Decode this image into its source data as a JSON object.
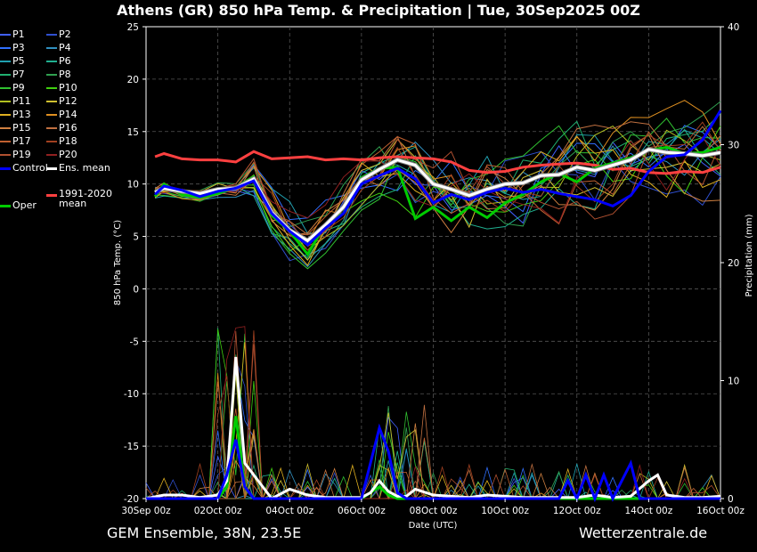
{
  "title": "Athens  (GR)  850 hPa Temp. & Precipitation | Tue, 30Sep2025 00Z",
  "footer": {
    "left": "GEM Ensemble, 38N, 23.5E",
    "right": "Wetterzentrale.de"
  },
  "colors": {
    "background": "#000000",
    "control": "#0000ff",
    "ens_mean": "#ffffff",
    "climate_mean": "#ff4040",
    "oper": "#00cc00"
  },
  "legend": [
    {
      "label": "P1",
      "color": "#4060ff"
    },
    {
      "label": "P2",
      "color": "#3050d0"
    },
    {
      "label": "P3",
      "color": "#3070ff"
    },
    {
      "label": "P4",
      "color": "#3090c0"
    },
    {
      "label": "P5",
      "color": "#20a0b0"
    },
    {
      "label": "P6",
      "color": "#20b090"
    },
    {
      "label": "P7",
      "color": "#20b070"
    },
    {
      "label": "P8",
      "color": "#30a050"
    },
    {
      "label": "P9",
      "color": "#30c030"
    },
    {
      "label": "P10",
      "color": "#40d010"
    },
    {
      "label": "P11",
      "color": "#b0c020"
    },
    {
      "label": "P12",
      "color": "#d0c030"
    },
    {
      "label": "P13",
      "color": "#e0b020"
    },
    {
      "label": "P14",
      "color": "#e09020"
    },
    {
      "label": "P15",
      "color": "#d08040"
    },
    {
      "label": "P16",
      "color": "#c07040"
    },
    {
      "label": "P17",
      "color": "#c06030"
    },
    {
      "label": "P18",
      "color": "#a04020"
    },
    {
      "label": "P19",
      "color": "#b05030"
    },
    {
      "label": "P20",
      "color": "#902020"
    },
    {
      "label": "Control",
      "color": "#0000ff"
    },
    {
      "label": "Ens. mean",
      "color": "#ffffff"
    },
    {
      "label": "1991-2020 mean",
      "color": "#ff4040"
    },
    {
      "label": "Oper",
      "color": "#00cc00"
    }
  ],
  "chart_data": {
    "type": "line",
    "xlabel": "Date (UTC)",
    "ylabel": "850 hPa Temp. (°C)",
    "y2label": "Precipitation (mm)",
    "xlim": [
      0,
      16
    ],
    "ylim": [
      -20,
      25
    ],
    "y2lim": [
      0,
      40
    ],
    "x_unit": "days since 30Sep2025 00z",
    "x_ticks": [
      {
        "x": 0,
        "label": "30Sep 00z"
      },
      {
        "x": 2,
        "label": "02Oct 00z"
      },
      {
        "x": 4,
        "label": "04Oct 00z"
      },
      {
        "x": 6,
        "label": "06Oct 00z"
      },
      {
        "x": 8,
        "label": "08Oct 00z"
      },
      {
        "x": 10,
        "label": "10Oct 00z"
      },
      {
        "x": 12,
        "label": "12Oct 00z"
      },
      {
        "x": 14,
        "label": "14Oct 00z"
      },
      {
        "x": 16,
        "label": "16Oct 00z"
      }
    ],
    "y_ticks": [
      25,
      20,
      15,
      10,
      5,
      0,
      -5,
      -10,
      -15,
      -20
    ],
    "y2_ticks": [
      40,
      30,
      20,
      10,
      0
    ],
    "grid": true,
    "temperature_series": [
      {
        "name": "Control",
        "color": "#0000ff",
        "width": 3,
        "x": [
          0.25,
          0.5,
          1,
          1.5,
          2,
          2.5,
          3,
          3.5,
          4,
          4.5,
          5,
          5.5,
          6,
          6.5,
          7,
          7.5,
          8,
          8.5,
          9,
          9.5,
          10,
          10.5,
          11,
          11.5,
          12,
          12.5,
          13,
          13.5,
          14,
          14.5,
          15,
          15.5,
          16
        ],
        "y": [
          9,
          9.8,
          9.4,
          8.8,
          9.3,
          9.6,
          10.3,
          7.2,
          5.5,
          4.2,
          5.8,
          7.2,
          10.0,
          10.8,
          11.5,
          10.5,
          8.2,
          9.0,
          8.5,
          9.2,
          9.6,
          9.2,
          9.5,
          9.1,
          8.8,
          8.5,
          7.9,
          8.9,
          11.2,
          12.6,
          12.8,
          14.2,
          17.0
        ]
      },
      {
        "name": "Ens. mean",
        "color": "#ffffff",
        "width": 3,
        "x": [
          0.25,
          0.5,
          1,
          1.5,
          2,
          2.5,
          3,
          3.5,
          4,
          4.5,
          5,
          5.5,
          6,
          6.5,
          7,
          7.5,
          8,
          8.5,
          9,
          9.5,
          10,
          10.5,
          11,
          11.5,
          12,
          12.5,
          13,
          13.5,
          14,
          14.5,
          15,
          15.5,
          16
        ],
        "y": [
          9.2,
          9.6,
          9.3,
          9.1,
          9.5,
          9.6,
          10.5,
          7.3,
          5.6,
          4.6,
          6.1,
          7.8,
          10.4,
          11.4,
          12.3,
          11.8,
          10.0,
          9.5,
          8.9,
          9.5,
          10.0,
          10.1,
          10.8,
          10.9,
          11.6,
          11.3,
          11.8,
          12.3,
          13.3,
          13.0,
          12.9,
          12.7,
          13.0
        ]
      },
      {
        "name": "1991-2020 mean",
        "color": "#ff4040",
        "width": 3,
        "x": [
          0.25,
          0.5,
          1,
          1.5,
          2,
          2.5,
          3,
          3.5,
          4,
          4.5,
          5,
          5.5,
          6,
          6.5,
          7,
          7.5,
          8,
          8.5,
          9,
          9.5,
          10,
          10.5,
          11,
          11.5,
          12,
          12.5,
          13,
          13.5,
          14,
          14.5,
          15,
          15.5,
          16
        ],
        "y": [
          12.6,
          12.9,
          12.4,
          12.3,
          12.3,
          12.1,
          13.1,
          12.4,
          12.5,
          12.6,
          12.3,
          12.4,
          12.3,
          12.5,
          12.6,
          12.5,
          12.4,
          12.1,
          11.3,
          11.1,
          11.2,
          11.6,
          11.8,
          11.9,
          12.0,
          11.8,
          11.4,
          11.5,
          11.1,
          11.0,
          11.2,
          11.1,
          11.6
        ]
      },
      {
        "name": "Oper",
        "color": "#00cc00",
        "width": 3,
        "x": [
          0.25,
          0.5,
          1,
          1.5,
          2,
          2.5,
          3,
          3.5,
          4,
          4.5,
          5,
          5.5,
          6,
          6.5,
          7,
          7.5,
          8,
          8.5,
          9,
          9.5,
          10,
          10.5,
          11,
          11.5,
          12,
          12.5,
          13,
          13.5,
          14,
          14.5,
          15,
          15.5,
          16
        ],
        "y": [
          8.8,
          10.0,
          9.0,
          8.7,
          9.1,
          9.7,
          10.7,
          7.0,
          5.5,
          3.3,
          6.2,
          7.2,
          10.6,
          11.5,
          11.6,
          6.7,
          7.8,
          6.5,
          7.8,
          6.8,
          8.2,
          9.0,
          10.2,
          11.0,
          10.2,
          11.5,
          12.0,
          12.5,
          13.2,
          13.5,
          12.9,
          13.0,
          13.5
        ]
      }
    ],
    "precipitation_series": [
      {
        "name": "Control",
        "color": "#0000ff",
        "width": 3,
        "x": [
          0,
          1,
          2,
          2.25,
          2.5,
          2.75,
          3,
          3.5,
          4,
          5,
          6,
          6.25,
          6.5,
          6.75,
          7,
          7.25,
          7.5,
          8,
          9,
          10,
          11,
          11.5,
          11.75,
          12,
          12.25,
          12.5,
          12.75,
          13,
          13.25,
          13.5,
          13.75,
          14,
          14.5,
          15,
          16
        ],
        "y": [
          0,
          0,
          0,
          2,
          5,
          1,
          0,
          0,
          0,
          0,
          0,
          3,
          6,
          4,
          0.5,
          0,
          0,
          0,
          0,
          0,
          0,
          0,
          1.5,
          0,
          2,
          0,
          2,
          0,
          1.5,
          3,
          0,
          0,
          0,
          0,
          0
        ]
      },
      {
        "name": "Ens. mean",
        "color": "#ffffff",
        "width": 3,
        "x": [
          0,
          0.5,
          1,
          1.5,
          2,
          2.25,
          2.5,
          2.75,
          3,
          3.5,
          4,
          4.5,
          5,
          5.5,
          6,
          6.25,
          6.5,
          6.75,
          7,
          7.25,
          7.5,
          8,
          8.5,
          9,
          9.5,
          10,
          10.5,
          11,
          11.5,
          12,
          12.5,
          13,
          13.5,
          14,
          14.25,
          14.5,
          15,
          15.5,
          16
        ],
        "y": [
          0,
          0.3,
          0.3,
          0.1,
          0.3,
          1.5,
          12,
          3,
          2,
          0,
          0.8,
          0.3,
          0.1,
          0.1,
          0.1,
          0.5,
          1.5,
          0.6,
          0.2,
          0.2,
          0.8,
          0.3,
          0.2,
          0.1,
          0.3,
          0.2,
          0.1,
          0.1,
          0.1,
          0.1,
          0.3,
          0.1,
          0.2,
          1.5,
          2,
          0.3,
          0.1,
          0.1,
          0.2
        ]
      },
      {
        "name": "Oper",
        "color": "#00cc00",
        "width": 3,
        "x": [
          0,
          1,
          2,
          2.25,
          2.5,
          2.75,
          3,
          4,
          5,
          6,
          6.25,
          6.5,
          6.75,
          7,
          8,
          9,
          10,
          11,
          12,
          13,
          14,
          15,
          16
        ],
        "y": [
          0,
          0,
          0,
          1,
          7,
          1,
          0,
          0,
          0,
          0,
          0.5,
          1,
          0.3,
          0,
          0,
          0,
          0,
          0,
          0,
          0,
          0,
          0,
          0
        ]
      }
    ]
  }
}
